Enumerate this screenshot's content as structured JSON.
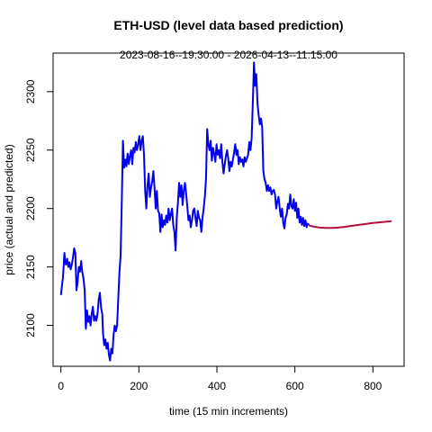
{
  "chart_data": {
    "type": "line",
    "title": "ETH-USD (level data based prediction)",
    "subtitle": "2023-08-16--19:30:00  -  2026-04-13--11:15:00",
    "xlabel": "time (15 min increments)",
    "ylabel": "price (actual and predicted)",
    "xlim": [
      -20,
      880
    ],
    "ylim": [
      2065,
      2333
    ],
    "x_ticks": [
      0,
      200,
      400,
      600,
      800
    ],
    "y_ticks": [
      2100,
      2150,
      2200,
      2250,
      2300
    ],
    "grid": false,
    "legend": "none",
    "series": [
      {
        "role": "actual",
        "color": "#0000ee",
        "points": [
          [
            0,
            2126
          ],
          [
            3,
            2135
          ],
          [
            5,
            2140
          ],
          [
            7,
            2150
          ],
          [
            9,
            2162
          ],
          [
            11,
            2155
          ],
          [
            13,
            2152
          ],
          [
            16,
            2157
          ],
          [
            19,
            2150
          ],
          [
            22,
            2154
          ],
          [
            25,
            2148
          ],
          [
            28,
            2152
          ],
          [
            31,
            2158
          ],
          [
            34,
            2166
          ],
          [
            37,
            2162
          ],
          [
            40,
            2130
          ],
          [
            43,
            2138
          ],
          [
            46,
            2150
          ],
          [
            49,
            2146
          ],
          [
            52,
            2155
          ],
          [
            55,
            2145
          ],
          [
            58,
            2140
          ],
          [
            61,
            2130
          ],
          [
            64,
            2097
          ],
          [
            67,
            2113
          ],
          [
            70,
            2103
          ],
          [
            73,
            2108
          ],
          [
            76,
            2100
          ],
          [
            79,
            2110
          ],
          [
            82,
            2116
          ],
          [
            85,
            2104
          ],
          [
            88,
            2108
          ],
          [
            91,
            2104
          ],
          [
            94,
            2110
          ],
          [
            97,
            2122
          ],
          [
            100,
            2128
          ],
          [
            103,
            2115
          ],
          [
            106,
            2110
          ],
          [
            108,
            2093
          ],
          [
            111,
            2083
          ],
          [
            114,
            2088
          ],
          [
            117,
            2080
          ],
          [
            120,
            2085
          ],
          [
            123,
            2075
          ],
          [
            126,
            2070
          ],
          [
            129,
            2080
          ],
          [
            132,
            2076
          ],
          [
            135,
            2092
          ],
          [
            138,
            2100
          ],
          [
            141,
            2095
          ],
          [
            144,
            2100
          ],
          [
            147,
            2123
          ],
          [
            150,
            2145
          ],
          [
            153,
            2160
          ],
          [
            156,
            2205
          ],
          [
            159,
            2258
          ],
          [
            162,
            2235
          ],
          [
            165,
            2242
          ],
          [
            168,
            2236
          ],
          [
            171,
            2247
          ],
          [
            174,
            2238
          ],
          [
            177,
            2245
          ],
          [
            180,
            2250
          ],
          [
            183,
            2238
          ],
          [
            186,
            2252
          ],
          [
            189,
            2248
          ],
          [
            192,
            2257
          ],
          [
            195,
            2250
          ],
          [
            198,
            2255
          ],
          [
            201,
            2262
          ],
          [
            204,
            2250
          ],
          [
            207,
            2258
          ],
          [
            210,
            2262
          ],
          [
            213,
            2246
          ],
          [
            216,
            2215
          ],
          [
            219,
            2200
          ],
          [
            222,
            2220
          ],
          [
            225,
            2230
          ],
          [
            228,
            2210
          ],
          [
            231,
            2218
          ],
          [
            234,
            2223
          ],
          [
            237,
            2232
          ],
          [
            240,
            2218
          ],
          [
            243,
            2200
          ],
          [
            246,
            2215
          ],
          [
            249,
            2198
          ],
          [
            252,
            2196
          ],
          [
            255,
            2180
          ],
          [
            258,
            2195
          ],
          [
            261,
            2184
          ],
          [
            264,
            2190
          ],
          [
            267,
            2186
          ],
          [
            270,
            2194
          ],
          [
            273,
            2188
          ],
          [
            276,
            2200
          ],
          [
            279,
            2190
          ],
          [
            282,
            2195
          ],
          [
            285,
            2200
          ],
          [
            288,
            2186
          ],
          [
            291,
            2180
          ],
          [
            294,
            2164
          ],
          [
            297,
            2192
          ],
          [
            300,
            2205
          ],
          [
            303,
            2222
          ],
          [
            306,
            2210
          ],
          [
            309,
            2220
          ],
          [
            312,
            2203
          ],
          [
            315,
            2215
          ],
          [
            318,
            2222
          ],
          [
            321,
            2213
          ],
          [
            324,
            2202
          ],
          [
            327,
            2190
          ],
          [
            330,
            2194
          ],
          [
            333,
            2184
          ],
          [
            336,
            2190
          ],
          [
            339,
            2198
          ],
          [
            342,
            2200
          ],
          [
            345,
            2192
          ],
          [
            348,
            2185
          ],
          [
            351,
            2198
          ],
          [
            354,
            2192
          ],
          [
            357,
            2190
          ],
          [
            360,
            2180
          ],
          [
            363,
            2192
          ],
          [
            366,
            2200
          ],
          [
            369,
            2210
          ],
          [
            372,
            2225
          ],
          [
            375,
            2268
          ],
          [
            378,
            2255
          ],
          [
            381,
            2250
          ],
          [
            384,
            2258
          ],
          [
            387,
            2241
          ],
          [
            390,
            2252
          ],
          [
            393,
            2247
          ],
          [
            396,
            2240
          ],
          [
            399,
            2255
          ],
          [
            402,
            2246
          ],
          [
            405,
            2250
          ],
          [
            408,
            2243
          ],
          [
            411,
            2255
          ],
          [
            414,
            2240
          ],
          [
            417,
            2230
          ],
          [
            420,
            2238
          ],
          [
            423,
            2245
          ],
          [
            426,
            2250
          ],
          [
            429,
            2243
          ],
          [
            432,
            2232
          ],
          [
            435,
            2240
          ],
          [
            438,
            2236
          ],
          [
            441,
            2242
          ],
          [
            444,
            2248
          ],
          [
            447,
            2255
          ],
          [
            450,
            2246
          ],
          [
            453,
            2250
          ],
          [
            456,
            2238
          ],
          [
            459,
            2244
          ],
          [
            462,
            2240
          ],
          [
            465,
            2242
          ],
          [
            468,
            2236
          ],
          [
            471,
            2244
          ],
          [
            474,
            2240
          ],
          [
            477,
            2243
          ],
          [
            480,
            2246
          ],
          [
            483,
            2257
          ],
          [
            486,
            2250
          ],
          [
            489,
            2260
          ],
          [
            492,
            2290
          ],
          [
            495,
            2325
          ],
          [
            498,
            2305
          ],
          [
            501,
            2315
          ],
          [
            504,
            2290
          ],
          [
            507,
            2280
          ],
          [
            510,
            2272
          ],
          [
            513,
            2277
          ],
          [
            516,
            2270
          ],
          [
            519,
            2232
          ],
          [
            522,
            2225
          ],
          [
            525,
            2222
          ],
          [
            528,
            2215
          ],
          [
            531,
            2220
          ],
          [
            534,
            2215
          ],
          [
            537,
            2218
          ],
          [
            540,
            2212
          ],
          [
            543,
            2215
          ],
          [
            546,
            2216
          ],
          [
            549,
            2212
          ],
          [
            552,
            2200
          ],
          [
            555,
            2206
          ],
          [
            558,
            2210
          ],
          [
            561,
            2200
          ],
          [
            564,
            2193
          ],
          [
            567,
            2200
          ],
          [
            570,
            2188
          ],
          [
            573,
            2183
          ],
          [
            576,
            2192
          ],
          [
            579,
            2195
          ],
          [
            582,
            2204
          ],
          [
            585,
            2200
          ],
          [
            588,
            2212
          ],
          [
            591,
            2202
          ],
          [
            594,
            2200
          ],
          [
            597,
            2208
          ],
          [
            600,
            2198
          ],
          [
            603,
            2205
          ],
          [
            606,
            2192
          ],
          [
            609,
            2200
          ],
          [
            612,
            2188
          ],
          [
            615,
            2193
          ],
          [
            618,
            2186
          ],
          [
            621,
            2192
          ],
          [
            624,
            2185
          ],
          [
            627,
            2190
          ],
          [
            630,
            2184
          ],
          [
            633,
            2187
          ],
          [
            636,
            2186
          ]
        ]
      },
      {
        "role": "predicted",
        "color": "#b0103a",
        "points": [
          [
            636,
            2185.5
          ],
          [
            650,
            2184.4
          ],
          [
            665,
            2183.7
          ],
          [
            680,
            2183.4
          ],
          [
            695,
            2183.4
          ],
          [
            710,
            2183.7
          ],
          [
            725,
            2184.2
          ],
          [
            740,
            2184.9
          ],
          [
            755,
            2185.6
          ],
          [
            770,
            2186.3
          ],
          [
            785,
            2187.0
          ],
          [
            800,
            2187.6
          ],
          [
            812,
            2188.0
          ],
          [
            824,
            2188.4
          ],
          [
            836,
            2188.8
          ],
          [
            848,
            2189.2
          ]
        ]
      }
    ]
  }
}
